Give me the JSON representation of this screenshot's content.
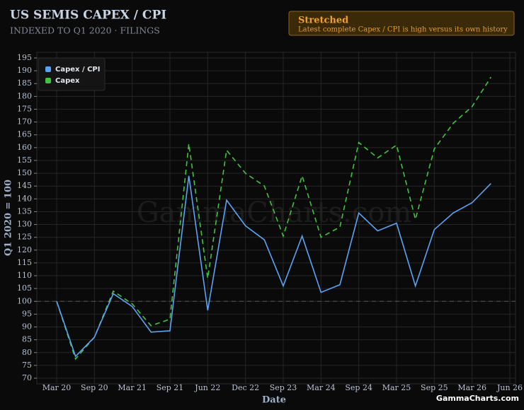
{
  "chart_data": {
    "type": "line",
    "title": "US SEMIS CAPEX / CPI",
    "subtitle": "INDEXED TO Q1 2020 · FILINGS",
    "x_label": "Date",
    "y_label": "Q1 2020 = 100",
    "annotation": {
      "title": "Stretched",
      "text": "Latest complete Capex / CPI is high versus its own history"
    },
    "watermark": "GammaCharts.com",
    "credit": "GammaCharts.com",
    "categories": [
      "Mar 20",
      null,
      "Sep 20",
      null,
      "Mar 21",
      null,
      "Sep 21",
      null,
      "Jun 22",
      null,
      "Dec 22",
      null,
      "Sep 23",
      null,
      "Mar 24",
      null,
      "Sep 24",
      null,
      "Mar 25",
      null,
      "Sep 25",
      null,
      "Mar 26",
      null,
      "Jun 26"
    ],
    "series": [
      {
        "name": "Capex / CPI",
        "color": "#5ba3f5",
        "dashed": false,
        "values": [
          100,
          78.5,
          86,
          103,
          98,
          88,
          88.5,
          149,
          96.5,
          139.5,
          129.5,
          124,
          106,
          125.5,
          103.5,
          106.5,
          134.5,
          127.5,
          130.5,
          106,
          128,
          134.5,
          138.5,
          146,
          null
        ]
      },
      {
        "name": "Capex",
        "color": "#3ec43e",
        "dashed": true,
        "values": [
          100,
          77.5,
          86,
          104,
          99,
          90.5,
          93,
          161.5,
          109,
          159,
          150,
          145,
          125.5,
          149,
          125,
          129,
          162,
          156,
          161,
          132,
          159.5,
          169.5,
          176,
          187.5,
          null
        ]
      }
    ],
    "reference_line": 100,
    "ylim": [
      70,
      195
    ],
    "yticks": [
      70,
      75,
      80,
      85,
      90,
      95,
      100,
      105,
      110,
      115,
      120,
      125,
      130,
      135,
      140,
      145,
      150,
      155,
      160,
      165,
      170,
      175,
      180,
      185,
      190,
      195
    ],
    "grid": true,
    "legend": "upper left"
  }
}
